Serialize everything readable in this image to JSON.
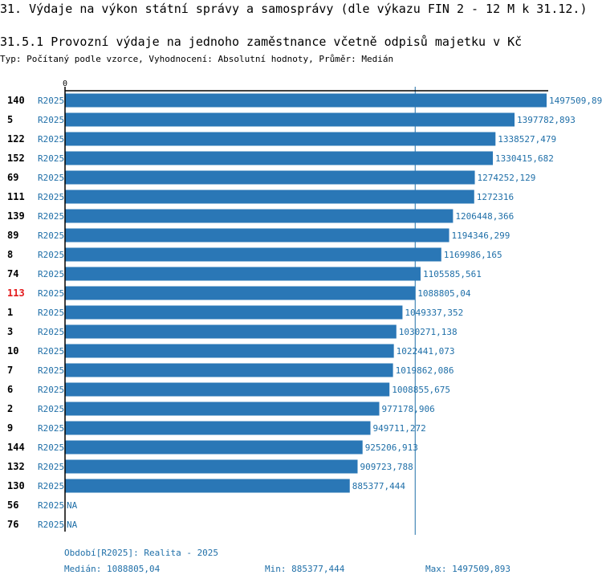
{
  "title": "31. Výdaje na výkon státní správy a samosprávy (dle výkazu FIN 2 - 12 M k 31.12.)",
  "subtitle": "31.5.1 Provozní výdaje na jednoho zaměstnance včetně odpisů majetku v Kč",
  "typ_line": "Typ: Počítaný podle vzorce, Vyhodnocení: Absolutní hodnoty, Průměr: Medián",
  "colors": {
    "bar": "#2a77b6",
    "text_blue": "#1f6fa8",
    "highlight": "#e31a1c",
    "axis": "#000000"
  },
  "chart_data": {
    "type": "bar",
    "orientation": "horizontal",
    "x_axis_zero_label": "0",
    "xlim": [
      0,
      1497509.893
    ],
    "median": 1088805.04,
    "highlight_id": "113",
    "rows": [
      {
        "id": "140",
        "period": "R2025",
        "value": 1497509.893,
        "label": "1497509,893"
      },
      {
        "id": "5",
        "period": "R2025",
        "value": 1397782.893,
        "label": "1397782,893"
      },
      {
        "id": "122",
        "period": "R2025",
        "value": 1338527.479,
        "label": "1338527,479"
      },
      {
        "id": "152",
        "period": "R2025",
        "value": 1330415.682,
        "label": "1330415,682"
      },
      {
        "id": "69",
        "period": "R2025",
        "value": 1274252.129,
        "label": "1274252,129"
      },
      {
        "id": "111",
        "period": "R2025",
        "value": 1272316,
        "label": "1272316"
      },
      {
        "id": "139",
        "period": "R2025",
        "value": 1206448.366,
        "label": "1206448,366"
      },
      {
        "id": "89",
        "period": "R2025",
        "value": 1194346.299,
        "label": "1194346,299"
      },
      {
        "id": "8",
        "period": "R2025",
        "value": 1169986.165,
        "label": "1169986,165"
      },
      {
        "id": "74",
        "period": "R2025",
        "value": 1105585.561,
        "label": "1105585,561"
      },
      {
        "id": "113",
        "period": "R2025",
        "value": 1088805.04,
        "label": "1088805,04"
      },
      {
        "id": "1",
        "period": "R2025",
        "value": 1049337.352,
        "label": "1049337,352"
      },
      {
        "id": "3",
        "period": "R2025",
        "value": 1030271.138,
        "label": "1030271,138"
      },
      {
        "id": "10",
        "period": "R2025",
        "value": 1022441.073,
        "label": "1022441,073"
      },
      {
        "id": "7",
        "period": "R2025",
        "value": 1019862.086,
        "label": "1019862,086"
      },
      {
        "id": "6",
        "period": "R2025",
        "value": 1008855.675,
        "label": "1008855,675"
      },
      {
        "id": "2",
        "period": "R2025",
        "value": 977178.906,
        "label": "977178,906"
      },
      {
        "id": "9",
        "period": "R2025",
        "value": 949711.272,
        "label": "949711,272"
      },
      {
        "id": "144",
        "period": "R2025",
        "value": 925206.913,
        "label": "925206,913"
      },
      {
        "id": "132",
        "period": "R2025",
        "value": 909723.788,
        "label": "909723,788"
      },
      {
        "id": "130",
        "period": "R2025",
        "value": 885377.444,
        "label": "885377,444"
      },
      {
        "id": "56",
        "period": "R2025",
        "value": null,
        "label": "NA"
      },
      {
        "id": "76",
        "period": "R2025",
        "value": null,
        "label": "NA"
      }
    ]
  },
  "footer": {
    "period": "Období[R2025]: Realita - 2025",
    "median": "Medián: 1088805,04",
    "min": "Min: 885377,444",
    "max": "Max: 1497509,893"
  }
}
